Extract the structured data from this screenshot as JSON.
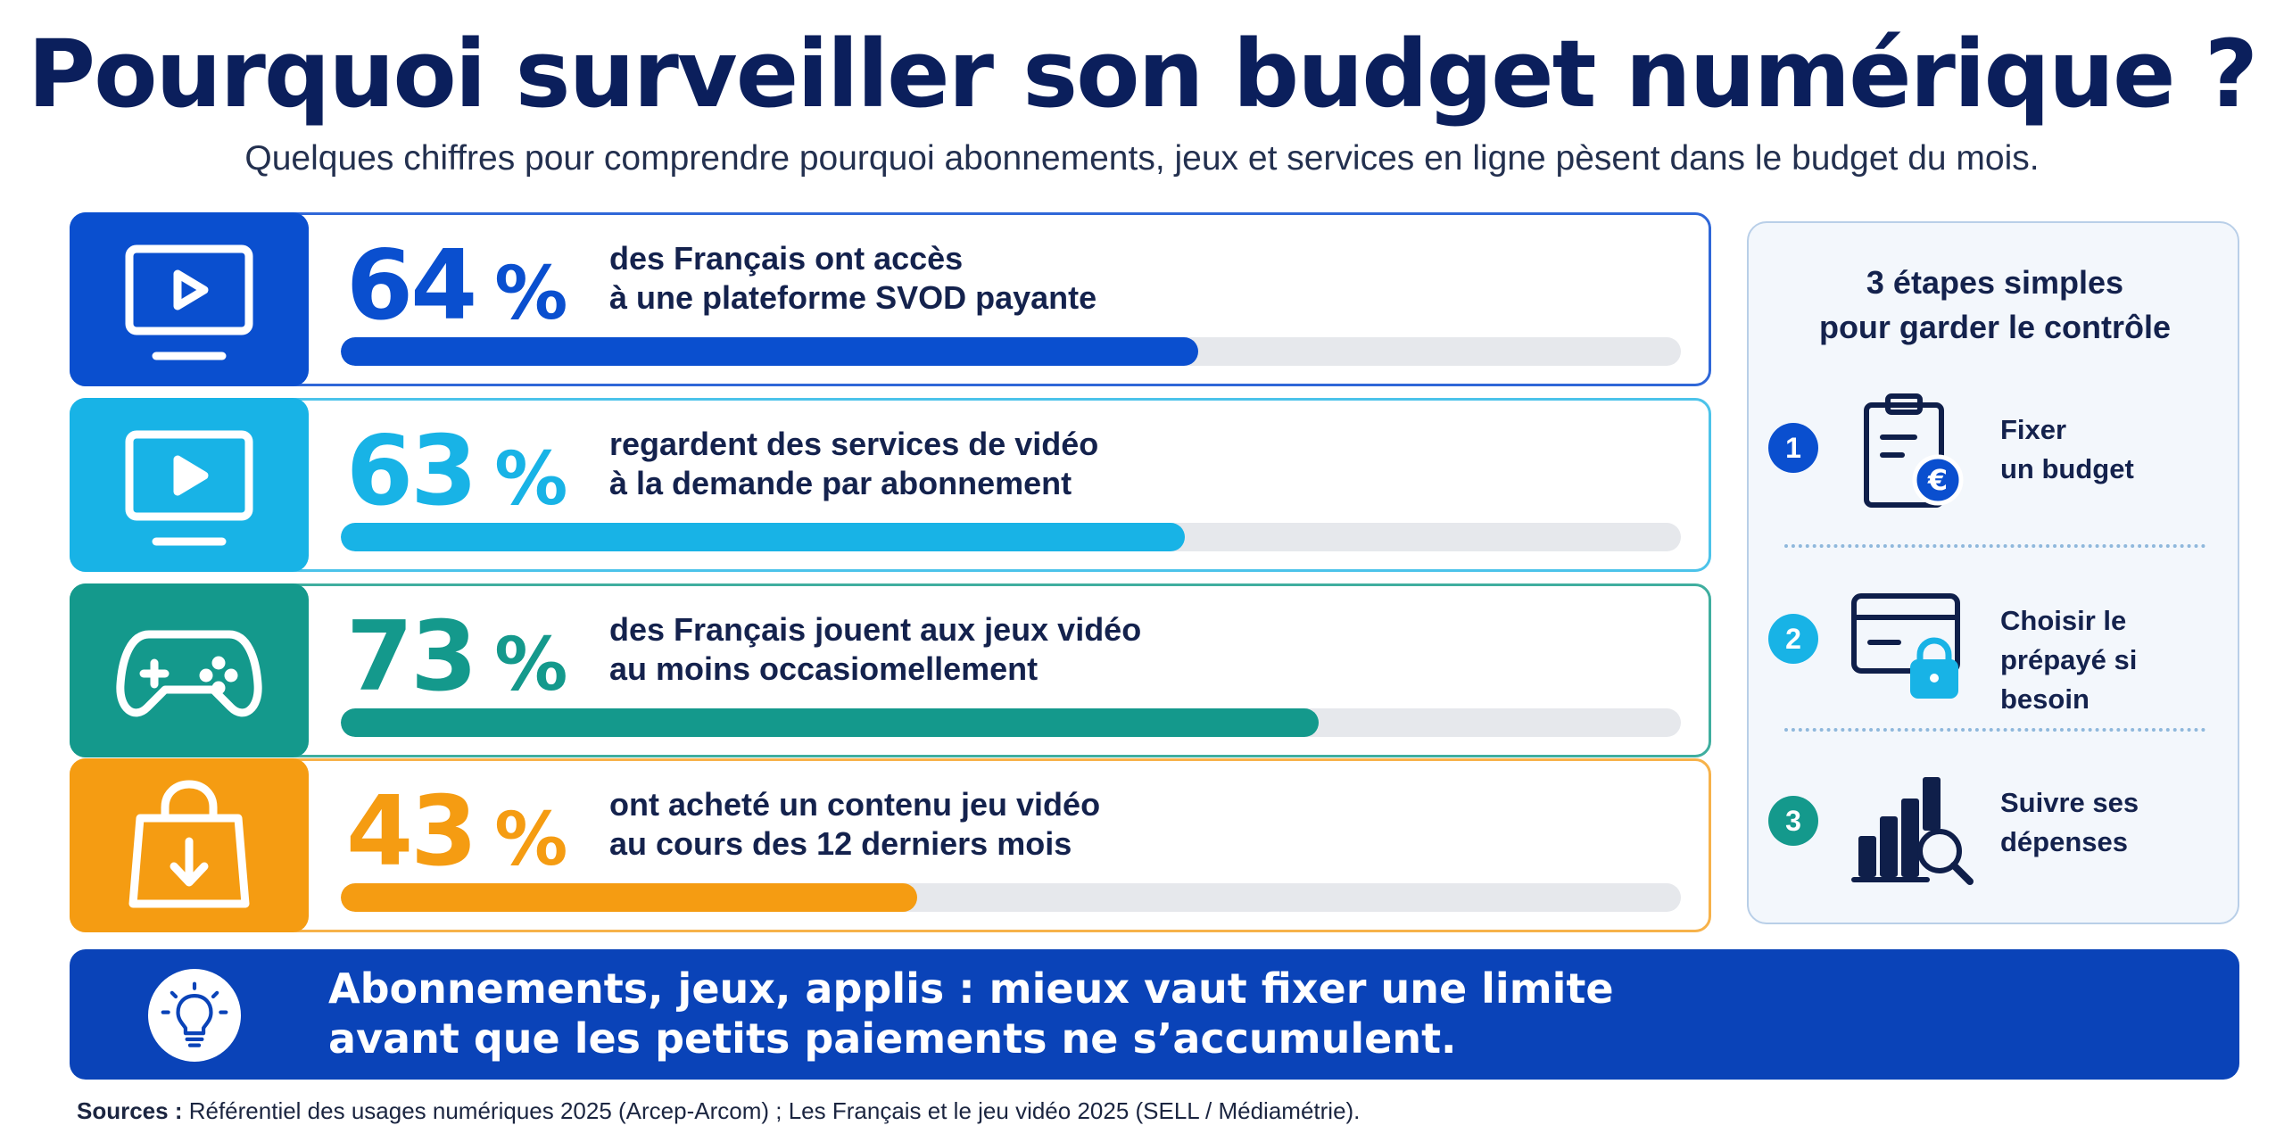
{
  "header": {
    "title": "Pourquoi surveiller son budget numérique ?",
    "subtitle": "Quelques chiffres pour comprendre pourquoi abonnements, jeux et services en ligne pèsent dans le budget du mois."
  },
  "stats": [
    {
      "value": 64,
      "value_label": "64",
      "unit": "%",
      "line1": "des Français ont accès",
      "line2": "à une plateforme SVOD payante",
      "icon": "tv-play-icon",
      "color": "#0a4fcf",
      "border": "#2f67d8",
      "text_color": "#0a4fcf"
    },
    {
      "value": 63,
      "value_label": "63",
      "unit": "%",
      "line1": "regardent des services de vidéo",
      "line2": "à la demande par abonnement",
      "icon": "tv-play-icon",
      "color": "#18b3e6",
      "border": "#4cc3ea",
      "text_color": "#18b3e6"
    },
    {
      "value": 73,
      "value_label": "73",
      "unit": "%",
      "line1": "des Français jouent aux jeux vidéo",
      "line2": "au moins occasiomellement",
      "icon": "gamepad-icon",
      "color": "#14998c",
      "border": "#3fae9f",
      "text_color": "#14998c"
    },
    {
      "value": 43,
      "value_label": "43",
      "unit": "%",
      "line1": "ont acheté un contenu jeu vidéo",
      "line2": "au cours des 12 derniers mois",
      "icon": "shopping-bag-download-icon",
      "color": "#f59c12",
      "border": "#f7b24a",
      "text_color": "#f59c12"
    }
  ],
  "sidebar": {
    "title_line1": "3 étapes simples",
    "title_line2": "pour garder le contrôle",
    "steps": [
      {
        "number": "1",
        "line1": "Fixer",
        "line2": "un budget",
        "icon": "clipboard-euro-icon",
        "color": "#0a4fcf"
      },
      {
        "number": "2",
        "line1": "Choisir le",
        "line2": "prépayé si besoin",
        "icon": "card-lock-icon",
        "color": "#18b3e6"
      },
      {
        "number": "3",
        "line1": "Suivre ses",
        "line2": "dépenses",
        "icon": "chart-magnifier-icon",
        "color": "#14998c"
      }
    ]
  },
  "banner": {
    "line1": "Abonnements, jeux, applis : mieux vaut fixer une limite",
    "line2": "avant que les petits paiements ne s’accumulent.",
    "icon": "lightbulb-icon",
    "color": "#0a43b8"
  },
  "footer": {
    "sources_label": "Sources :",
    "sources_text": " Référentiel des usages numériques 2025 (Arcep-Arcom) ; Les Français et le jeu vidéo 2025 (SELL / Médiamétrie)."
  }
}
